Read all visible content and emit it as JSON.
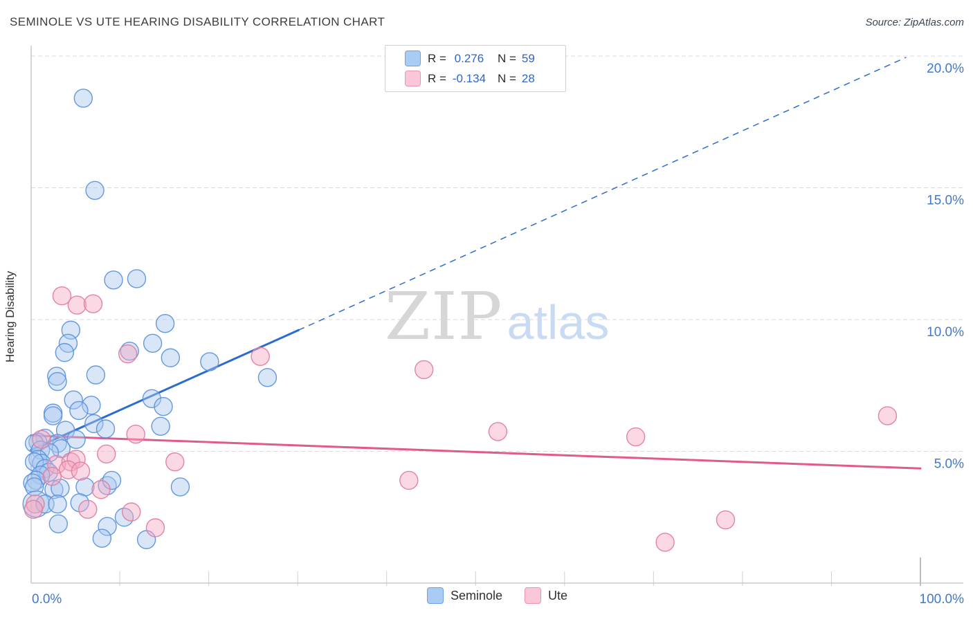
{
  "header": {
    "title": "SEMINOLE VS UTE HEARING DISABILITY CORRELATION CHART",
    "source": "Source: ZipAtlas.com"
  },
  "watermark": {
    "zip": "ZIP",
    "atlas": "atlas"
  },
  "axis": {
    "y_label": "Hearing Disability"
  },
  "legend_box": {
    "rows": [
      {
        "r_label": "R =",
        "r_value": "0.276",
        "n_label": "N =",
        "n_value": "59"
      },
      {
        "r_label": "R =",
        "r_value": "-0.134",
        "n_label": "N =",
        "n_value": "28"
      }
    ]
  },
  "bottom_legend": [
    {
      "label": "Seminole"
    },
    {
      "label": "Ute"
    }
  ],
  "colors": {
    "tick_label": "#4078d0",
    "grid": "#dadada",
    "axis": "#bfbfbf",
    "seminole_fill": "#a8c7f0",
    "seminole_stroke": "#5c92dd",
    "ute_fill": "#f5a9c4",
    "ute_stroke": "#e27d9f",
    "seminole_trend": "#2a6bcf",
    "ute_trend": "#e05a8b"
  },
  "chart_data": {
    "type": "scatter",
    "title": "SEMINOLE VS UTE HEARING DISABILITY CORRELATION CHART",
    "xlabel": "",
    "ylabel": "Hearing Disability",
    "xlim": [
      0,
      104.8
    ],
    "ylim": [
      0,
      20.45
    ],
    "grid": true,
    "y_ticks": [
      {
        "v": 20,
        "label": "20.0%"
      },
      {
        "v": 15,
        "label": "15.0%"
      },
      {
        "v": 10,
        "label": "10.0%"
      },
      {
        "v": 5,
        "label": "5.0%"
      }
    ],
    "x_labels": [
      {
        "v": 0,
        "label": "0.0%",
        "align": "start"
      },
      {
        "v": 100,
        "label": "100.0%",
        "align": "end"
      }
    ],
    "x_minor_ticks": [
      10,
      20,
      30,
      40,
      50,
      60,
      70,
      80,
      90
    ],
    "x_major_ticks": [
      100
    ],
    "series": [
      {
        "name": "Seminole",
        "R": 0.276,
        "N": 59,
        "points": [
          [
            5.9,
            18.4
          ],
          [
            7.2,
            14.9
          ],
          [
            9.3,
            11.5
          ],
          [
            11.9,
            11.55
          ],
          [
            15.1,
            9.85
          ],
          [
            4.5,
            9.6
          ],
          [
            4.2,
            9.1
          ],
          [
            13.7,
            9.1
          ],
          [
            3.8,
            8.75
          ],
          [
            11.1,
            8.8
          ],
          [
            15.7,
            8.55
          ],
          [
            20.1,
            8.4
          ],
          [
            26.6,
            7.8
          ],
          [
            7.3,
            7.9
          ],
          [
            2.9,
            7.85
          ],
          [
            3.0,
            7.65
          ],
          [
            13.6,
            7.0
          ],
          [
            14.9,
            6.7
          ],
          [
            4.8,
            6.95
          ],
          [
            6.8,
            6.75
          ],
          [
            5.4,
            6.55
          ],
          [
            2.5,
            6.45
          ],
          [
            2.5,
            6.35
          ],
          [
            14.6,
            5.95
          ],
          [
            7.1,
            6.05
          ],
          [
            3.9,
            5.8
          ],
          [
            8.4,
            5.85
          ],
          [
            1.6,
            5.5
          ],
          [
            5.1,
            5.45
          ],
          [
            3.0,
            5.3
          ],
          [
            0.8,
            5.35
          ],
          [
            0.4,
            5.3
          ],
          [
            3.4,
            5.1
          ],
          [
            1.1,
            5.05
          ],
          [
            2.1,
            4.95
          ],
          [
            0.8,
            4.7
          ],
          [
            1.2,
            4.55
          ],
          [
            0.4,
            4.6
          ],
          [
            1.6,
            4.35
          ],
          [
            2.0,
            4.2
          ],
          [
            1.1,
            4.1
          ],
          [
            0.6,
            3.9
          ],
          [
            0.2,
            3.8
          ],
          [
            0.4,
            3.65
          ],
          [
            2.6,
            3.55
          ],
          [
            3.3,
            3.6
          ],
          [
            6.1,
            3.65
          ],
          [
            8.6,
            3.7
          ],
          [
            9.1,
            3.9
          ],
          [
            0.6,
            3.0,
            19
          ],
          [
            1.6,
            3.0
          ],
          [
            3.0,
            3.0
          ],
          [
            5.5,
            3.05
          ],
          [
            16.8,
            3.65
          ],
          [
            10.5,
            2.5
          ],
          [
            3.1,
            2.25
          ],
          [
            8.6,
            2.15
          ],
          [
            8.0,
            1.7
          ],
          [
            13.0,
            1.65
          ]
        ]
      },
      {
        "name": "Ute",
        "R": -0.134,
        "N": 28,
        "points": [
          [
            3.5,
            10.9
          ],
          [
            5.2,
            10.55
          ],
          [
            7.0,
            10.6
          ],
          [
            10.9,
            8.7
          ],
          [
            25.8,
            8.6
          ],
          [
            44.2,
            8.1
          ],
          [
            52.5,
            5.75
          ],
          [
            42.5,
            3.9
          ],
          [
            68.0,
            5.55
          ],
          [
            71.3,
            1.55
          ],
          [
            78.1,
            2.4
          ],
          [
            96.3,
            6.35
          ],
          [
            1.2,
            5.45
          ],
          [
            11.8,
            5.65
          ],
          [
            16.2,
            4.6
          ],
          [
            8.5,
            4.9
          ],
          [
            2.9,
            4.5
          ],
          [
            4.5,
            4.6
          ],
          [
            5.1,
            4.7
          ],
          [
            4.2,
            4.3
          ],
          [
            5.6,
            4.25
          ],
          [
            2.4,
            4.05
          ],
          [
            7.9,
            3.55
          ],
          [
            0.5,
            3.0
          ],
          [
            6.4,
            2.8
          ],
          [
            11.3,
            2.7
          ],
          [
            14.0,
            2.1
          ],
          [
            0.3,
            2.8
          ]
        ]
      }
    ],
    "trend_lines": [
      {
        "series": "Seminole",
        "solid": [
          [
            0,
            5.05
          ],
          [
            30.1,
            9.6
          ]
        ],
        "dashed": [
          [
            30.1,
            9.6
          ],
          [
            98.4,
            19.95
          ]
        ]
      },
      {
        "series": "Ute",
        "solid": [
          [
            0,
            5.6
          ],
          [
            100,
            4.35
          ]
        ]
      }
    ]
  }
}
